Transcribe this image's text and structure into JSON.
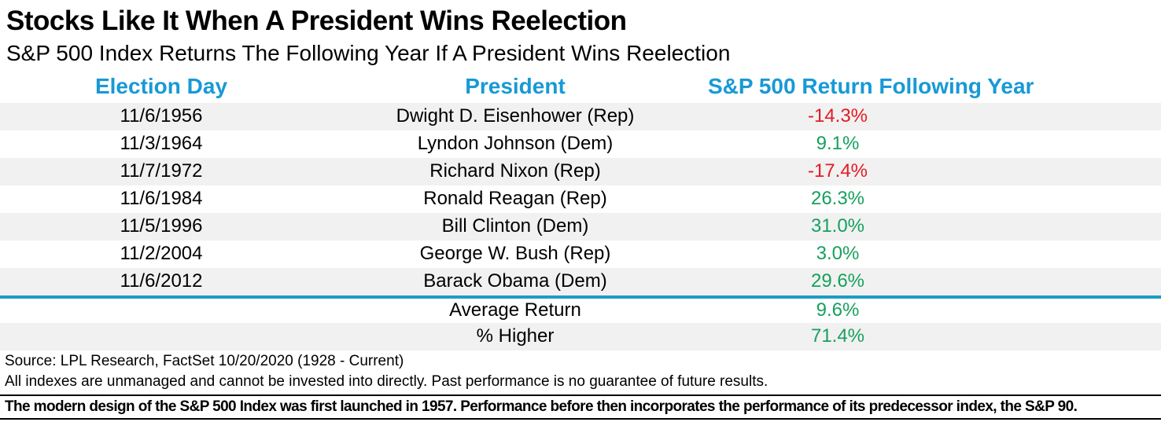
{
  "title": "Stocks Like It When A President Wins Reelection",
  "subtitle": "S&P 500 Index Returns The Following Year If A President Wins Reelection",
  "table": {
    "headers": {
      "election_day": "Election Day",
      "president": "President",
      "return": "S&P 500 Return Following Year"
    },
    "rows": [
      {
        "date": "11/6/1956",
        "president": "Dwight D. Eisenhower (Rep)",
        "return": "-14.3%"
      },
      {
        "date": "11/3/1964",
        "president": "Lyndon Johnson (Dem)",
        "return": "9.1%"
      },
      {
        "date": "11/7/1972",
        "president": "Richard Nixon (Rep)",
        "return": "-17.4%"
      },
      {
        "date": "11/6/1984",
        "president": "Ronald Reagan (Rep)",
        "return": "26.3%"
      },
      {
        "date": "11/5/1996",
        "president": "Bill Clinton (Dem)",
        "return": "31.0%"
      },
      {
        "date": "11/2/2004",
        "president": "George W. Bush (Rep)",
        "return": "3.0%"
      },
      {
        "date": "11/6/2012",
        "president": "Barack Obama (Dem)",
        "return": "29.6%"
      }
    ],
    "summary": [
      {
        "label": "Average Return",
        "return": "9.6%"
      },
      {
        "label": "% Higher",
        "return": "71.4%"
      }
    ]
  },
  "footer": {
    "source": "Source: LPL Research, FactSet 10/20/2020 (1928 - Current)",
    "disclaimer": "All indexes are unmanaged and cannot be invested into directly. Past performance is no guarantee of future results.",
    "note": "The modern design of the S&P 500 Index was first launched in 1957. Performance before then incorporates the performance of its  predecessor index, the S&P 90."
  },
  "colors": {
    "header_blue": "#1899d6",
    "divider_teal": "#1d9cc4",
    "positive_green": "#16a05d",
    "negative_red": "#e31b23",
    "stripe_gray": "#f1f1f1"
  },
  "chart_data": {
    "type": "table",
    "title": "Stocks Like It When A President Wins Reelection",
    "subtitle": "S&P 500 Index Returns The Following Year If A President Wins Reelection",
    "columns": [
      "Election Day",
      "President",
      "S&P 500 Return Following Year"
    ],
    "rows": [
      [
        "11/6/1956",
        "Dwight D. Eisenhower (Rep)",
        -14.3
      ],
      [
        "11/3/1964",
        "Lyndon Johnson (Dem)",
        9.1
      ],
      [
        "11/7/1972",
        "Richard Nixon (Rep)",
        -17.4
      ],
      [
        "11/6/1984",
        "Ronald Reagan (Rep)",
        26.3
      ],
      [
        "11/5/1996",
        "Bill Clinton (Dem)",
        31.0
      ],
      [
        "11/2/2004",
        "George W. Bush (Rep)",
        3.0
      ],
      [
        "11/6/2012",
        "Barack Obama (Dem)",
        29.6
      ]
    ],
    "summary": {
      "average_return_pct": 9.6,
      "percent_higher_pct": 71.4
    },
    "value_unit": "%"
  }
}
